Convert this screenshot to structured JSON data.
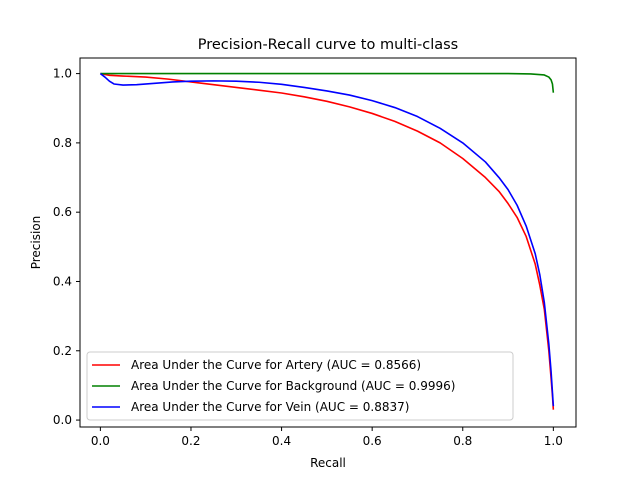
{
  "chart_data": {
    "type": "line",
    "title": "Precision-Recall curve to multi-class",
    "xlabel": "Recall",
    "ylabel": "Precision",
    "xlim": [
      -0.045,
      1.05
    ],
    "ylim": [
      -0.02,
      1.045
    ],
    "xticks": [
      0.0,
      0.2,
      0.4,
      0.6,
      0.8,
      1.0
    ],
    "xtick_labels": [
      "0.0",
      "0.2",
      "0.4",
      "0.6",
      "0.8",
      "1.0"
    ],
    "yticks": [
      0.0,
      0.2,
      0.4,
      0.6,
      0.8,
      1.0
    ],
    "ytick_labels": [
      "0.0",
      "0.2",
      "0.4",
      "0.6",
      "0.8",
      "1.0"
    ],
    "grid": false,
    "legend_position": "lower-left",
    "series": [
      {
        "name": "Area Under the Curve for Artery (AUC = 0.8566)",
        "color": "#ff0000",
        "points": [
          [
            0.0,
            1.0
          ],
          [
            0.02,
            0.995
          ],
          [
            0.05,
            0.993
          ],
          [
            0.1,
            0.99
          ],
          [
            0.15,
            0.984
          ],
          [
            0.2,
            0.976
          ],
          [
            0.25,
            0.968
          ],
          [
            0.3,
            0.96
          ],
          [
            0.35,
            0.952
          ],
          [
            0.4,
            0.944
          ],
          [
            0.45,
            0.933
          ],
          [
            0.5,
            0.92
          ],
          [
            0.55,
            0.904
          ],
          [
            0.6,
            0.885
          ],
          [
            0.65,
            0.862
          ],
          [
            0.7,
            0.834
          ],
          [
            0.75,
            0.8
          ],
          [
            0.8,
            0.755
          ],
          [
            0.85,
            0.7
          ],
          [
            0.88,
            0.66
          ],
          [
            0.9,
            0.625
          ],
          [
            0.92,
            0.585
          ],
          [
            0.94,
            0.53
          ],
          [
            0.96,
            0.45
          ],
          [
            0.97,
            0.39
          ],
          [
            0.98,
            0.32
          ],
          [
            0.985,
            0.26
          ],
          [
            0.99,
            0.2
          ],
          [
            0.995,
            0.12
          ],
          [
            0.998,
            0.07
          ],
          [
            1.0,
            0.03
          ]
        ]
      },
      {
        "name": "Area Under the Curve for Background (AUC = 0.9996)",
        "color": "#008000",
        "points": [
          [
            0.0,
            1.0
          ],
          [
            0.1,
            1.0
          ],
          [
            0.3,
            1.0
          ],
          [
            0.5,
            1.0
          ],
          [
            0.7,
            1.0
          ],
          [
            0.9,
            1.0
          ],
          [
            0.95,
            0.999
          ],
          [
            0.98,
            0.996
          ],
          [
            0.99,
            0.99
          ],
          [
            0.995,
            0.982
          ],
          [
            0.998,
            0.97
          ],
          [
            1.0,
            0.945
          ]
        ]
      },
      {
        "name": "Area Under the Curve for Vein (AUC = 0.8837)",
        "color": "#0000ff",
        "points": [
          [
            0.0,
            1.0
          ],
          [
            0.01,
            0.99
          ],
          [
            0.02,
            0.978
          ],
          [
            0.03,
            0.97
          ],
          [
            0.05,
            0.967
          ],
          [
            0.08,
            0.968
          ],
          [
            0.12,
            0.972
          ],
          [
            0.16,
            0.976
          ],
          [
            0.2,
            0.978
          ],
          [
            0.25,
            0.979
          ],
          [
            0.3,
            0.978
          ],
          [
            0.35,
            0.975
          ],
          [
            0.4,
            0.969
          ],
          [
            0.45,
            0.96
          ],
          [
            0.5,
            0.95
          ],
          [
            0.55,
            0.938
          ],
          [
            0.6,
            0.922
          ],
          [
            0.65,
            0.902
          ],
          [
            0.7,
            0.876
          ],
          [
            0.75,
            0.842
          ],
          [
            0.8,
            0.8
          ],
          [
            0.85,
            0.745
          ],
          [
            0.88,
            0.7
          ],
          [
            0.9,
            0.665
          ],
          [
            0.92,
            0.62
          ],
          [
            0.94,
            0.56
          ],
          [
            0.96,
            0.48
          ],
          [
            0.97,
            0.42
          ],
          [
            0.98,
            0.34
          ],
          [
            0.99,
            0.22
          ],
          [
            0.995,
            0.14
          ],
          [
            1.0,
            0.04
          ]
        ]
      }
    ]
  }
}
